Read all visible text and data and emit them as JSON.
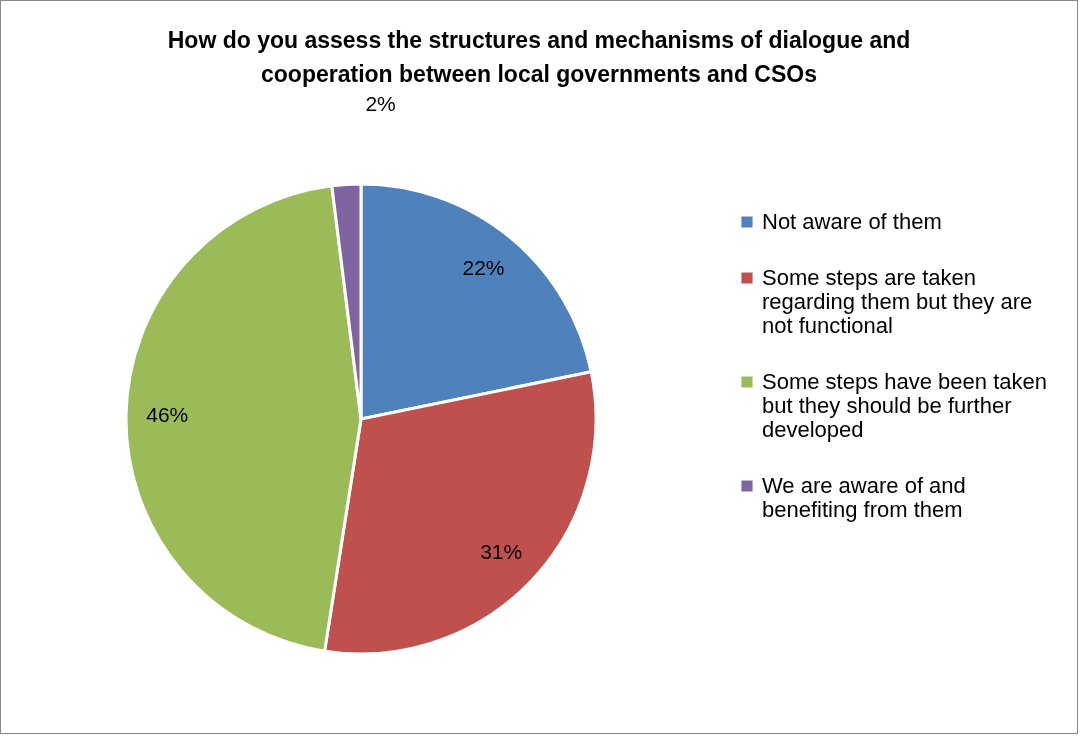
{
  "chart_data": {
    "type": "pie",
    "title": "How do you assess the structures and mechanisms of dialogue and cooperation between local governments and CSOs",
    "categories": [
      "Not aware of them",
      "Some steps are taken regarding them but they are not functional",
      "Some steps have been taken but they should be further developed",
      "We are aware of and benefiting from them"
    ],
    "values": [
      22,
      31,
      46,
      2
    ],
    "colors": [
      "#4f81bd",
      "#c0504d",
      "#9bbb59",
      "#8064a2"
    ],
    "value_labels": [
      "22%",
      "31%",
      "46%",
      "2%"
    ],
    "legend": "right"
  }
}
